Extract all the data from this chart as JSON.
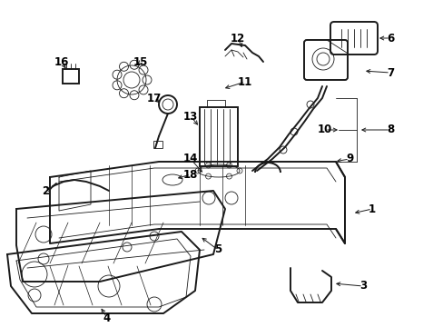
{
  "background_color": "#ffffff",
  "line_color": "#1a1a1a",
  "label_color": "#000000",
  "fig_width": 4.89,
  "fig_height": 3.6,
  "dpi": 100,
  "lw_main": 1.0,
  "lw_thin": 0.6,
  "lw_thick": 1.4,
  "font_size": 8.5,
  "font_size_small": 7.5
}
